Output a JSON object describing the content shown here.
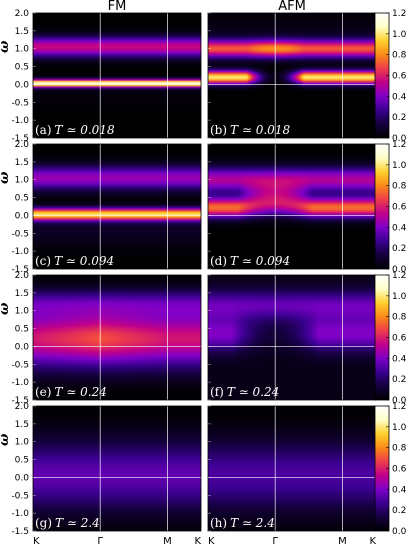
{
  "chart_data": {
    "type": "heatmap",
    "columns": [
      {
        "title": "FM"
      },
      {
        "title": "AFM"
      }
    ],
    "ylabel": "ω",
    "ylim": [
      -1.5,
      2.0
    ],
    "yticks": [
      "2.0",
      "1.5",
      "1.0",
      "0.5",
      "0.0",
      "-0.5",
      "-1.0",
      "-1.5"
    ],
    "xticks": [
      "K",
      "Γ",
      "M",
      "K"
    ],
    "colorbar": {
      "range": [
        0.0,
        1.2
      ],
      "ticks": [
        "1.2",
        "1.0",
        "0.8",
        "0.6",
        "0.4",
        "0.2",
        "0.0"
      ],
      "colormap": [
        "#000000",
        "#14003c",
        "#3a0090",
        "#7f00c8",
        "#c0008a",
        "#ee3d4a",
        "#fb8a18",
        "#ffd12e",
        "#ffffc8",
        "#ffffff"
      ]
    },
    "panels": [
      {
        "label": "(a)",
        "temp": "T ≃ 0.018",
        "type": "FM",
        "T": 0.018
      },
      {
        "label": "(b)",
        "temp": "T ≃ 0.018",
        "type": "AFM",
        "T": 0.018
      },
      {
        "label": "(c)",
        "temp": "T ≃ 0.094",
        "type": "FM",
        "T": 0.094
      },
      {
        "label": "(d)",
        "temp": "T ≃ 0.094",
        "type": "AFM",
        "T": 0.094
      },
      {
        "label": "(e)",
        "temp": "T ≃ 0.24",
        "type": "FM",
        "T": 0.24
      },
      {
        "label": "(f)",
        "temp": "T ≃ 0.24",
        "type": "AFM",
        "T": 0.24
      },
      {
        "label": "(g)",
        "temp": "T ≃ 2.4",
        "type": "FM",
        "T": 2.4
      },
      {
        "label": "(h)",
        "temp": "T ≃ 2.4",
        "type": "AFM",
        "T": 2.4
      }
    ]
  }
}
